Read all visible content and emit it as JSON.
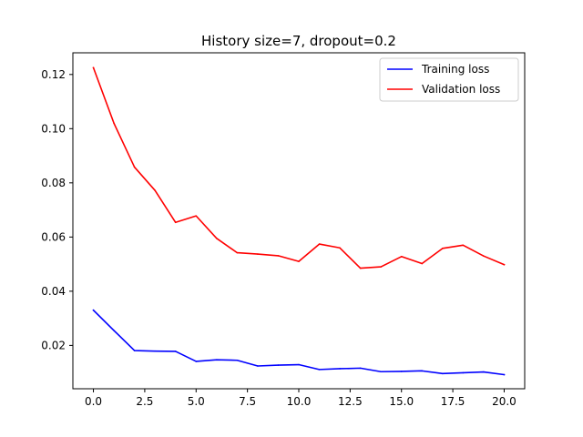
{
  "chart_data": {
    "type": "line",
    "title": "History size=7, dropout=0.2",
    "xlabel": "",
    "ylabel": "",
    "xlim": [
      -1.0,
      21.0
    ],
    "ylim": [
      0.004,
      0.128
    ],
    "x_ticks": [
      0.0,
      2.5,
      5.0,
      7.5,
      10.0,
      12.5,
      15.0,
      17.5,
      20.0
    ],
    "x_tick_labels": [
      "0.0",
      "2.5",
      "5.0",
      "7.5",
      "10.0",
      "12.5",
      "15.0",
      "17.5",
      "20.0"
    ],
    "y_ticks": [
      0.02,
      0.04,
      0.06,
      0.08,
      0.1,
      0.12
    ],
    "y_tick_labels": [
      "0.02",
      "0.04",
      "0.06",
      "0.08",
      "0.10",
      "0.12"
    ],
    "grid": false,
    "legend_position": "top-right",
    "x": [
      0,
      1,
      2,
      3,
      4,
      5,
      6,
      7,
      8,
      9,
      10,
      11,
      12,
      13,
      14,
      15,
      16,
      17,
      18,
      19,
      20
    ],
    "series": [
      {
        "name": "Training loss",
        "color": "#0000ff",
        "values": [
          0.033,
          0.0255,
          0.0181,
          0.0179,
          0.0178,
          0.0141,
          0.0147,
          0.0145,
          0.0124,
          0.0127,
          0.0129,
          0.0111,
          0.0114,
          0.0116,
          0.0103,
          0.0104,
          0.0106,
          0.0096,
          0.0099,
          0.0102,
          0.0092
        ]
      },
      {
        "name": "Validation loss",
        "color": "#ff0000",
        "values": [
          0.1225,
          0.102,
          0.0858,
          0.0772,
          0.0654,
          0.0678,
          0.0595,
          0.0542,
          0.0537,
          0.0531,
          0.051,
          0.0574,
          0.056,
          0.0485,
          0.049,
          0.0528,
          0.0502,
          0.0558,
          0.057,
          0.053,
          0.0498
        ]
      }
    ]
  }
}
